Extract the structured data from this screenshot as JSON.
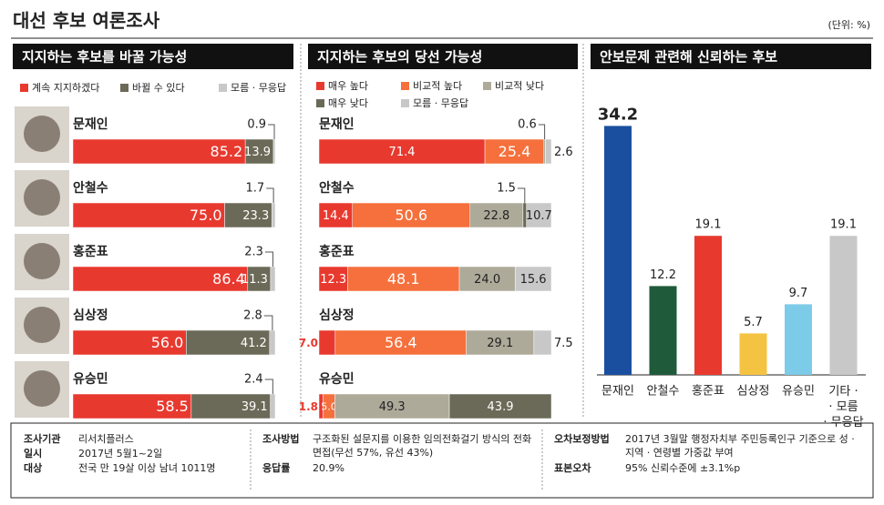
{
  "title": "대선 후보 여론조사",
  "unit": "(단위: %)",
  "chart_data": [
    {
      "type": "stacked-bar",
      "title": "지지하는 후보를 바꿀 가능성",
      "categories": [
        "문재인",
        "안철수",
        "홍준표",
        "심상정",
        "유승민"
      ],
      "xlim": [
        0,
        100
      ],
      "series": [
        {
          "name": "계속 지지하겠다",
          "color": "#e8392f",
          "values": [
            85.2,
            75.0,
            86.4,
            56.0,
            58.5
          ],
          "value_labels": [
            "85.2",
            "75.0",
            "86.4",
            "56.0",
            "58.5"
          ]
        },
        {
          "name": "바뀔 수 있다",
          "color": "#6b6a58",
          "values": [
            13.9,
            23.3,
            11.3,
            41.2,
            39.1
          ],
          "value_labels": [
            "13.9",
            "23.3",
            "11.3",
            "41.2",
            "39.1"
          ]
        },
        {
          "name": "모름 · 무응답",
          "color": "#c8c8c8",
          "values": [
            0.9,
            1.7,
            2.3,
            2.8,
            2.4
          ],
          "value_labels": [
            "0.9",
            "1.7",
            "2.3",
            "2.8",
            "2.4"
          ]
        }
      ]
    },
    {
      "type": "stacked-bar",
      "title": "지지하는 후보의 당선 가능성",
      "categories": [
        "문재인",
        "안철수",
        "홍준표",
        "심상정",
        "유승민"
      ],
      "xlim": [
        0,
        100
      ],
      "series": [
        {
          "name": "매우 높다",
          "color": "#e8392f",
          "values": [
            71.4,
            14.4,
            12.3,
            7.0,
            1.8
          ],
          "value_labels": [
            "71.4",
            "14.4",
            "12.3",
            "7.0",
            "1.8"
          ]
        },
        {
          "name": "비교적 높다",
          "color": "#f5703c",
          "values": [
            25.4,
            50.6,
            48.1,
            56.4,
            5.0
          ],
          "value_labels": [
            "25.4",
            "50.6",
            "48.1",
            "56.4",
            "5.0"
          ]
        },
        {
          "name": "비교적 낮다",
          "color": "#aeaa9a",
          "values": [
            0.6,
            22.8,
            24.0,
            29.1,
            49.3
          ],
          "value_labels": [
            "0.6",
            "22.8",
            "24.0",
            "29.1",
            "49.3"
          ]
        },
        {
          "name": "매우 낮다",
          "color": "#6b6a58",
          "values": [
            null,
            1.5,
            null,
            null,
            43.9
          ],
          "value_labels": [
            null,
            "1.5",
            null,
            null,
            "43.9"
          ]
        },
        {
          "name": "모름 · 무응답",
          "color": "#c8c8c8",
          "values": [
            2.6,
            10.7,
            15.6,
            7.5,
            null
          ],
          "value_labels": [
            "2.6",
            "10.7",
            "15.6",
            "7.5",
            null
          ]
        }
      ]
    },
    {
      "type": "bar",
      "title": "안보문제 관련해 신뢰하는 후보",
      "categories": [
        "문재인",
        "안철수",
        "홍준표",
        "심상정",
        "유승민",
        "기타 · 모름 · 무응답"
      ],
      "values": [
        34.2,
        12.2,
        19.1,
        5.7,
        9.7,
        19.1
      ],
      "colors": [
        "#1a4fa0",
        "#1f5a3a",
        "#e8392f",
        "#f5c342",
        "#7ccbe8",
        "#c8c8c8"
      ],
      "ylim": [
        0,
        40
      ]
    }
  ],
  "footer": [
    {
      "label": "조사기관",
      "text": "리서치플러스"
    },
    {
      "label": "일시",
      "text": "2017년 5월1~2일"
    },
    {
      "label": "대상",
      "text": "전국 만 19살 이상 남녀 1011명"
    },
    {
      "label": "조사방법",
      "text": "구조화된 설문지를 이용한 임의전화걸기 방식의 전화면접(무선 57%, 유선 43%)"
    },
    {
      "label": "응답률",
      "text": "20.9%"
    },
    {
      "label": "오차보정방법",
      "text": "2017년 3월말 행정자치부 주민등록인구 기준으로 성 · 지역 · 연령별 가중값 부여"
    },
    {
      "label": "표본오차",
      "text": "95% 신뢰수준에 ±3.1%p"
    }
  ]
}
